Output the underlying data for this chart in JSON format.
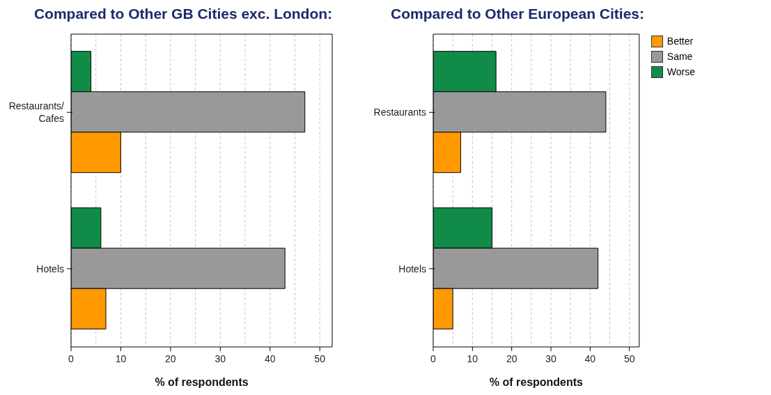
{
  "chart_data": [
    {
      "type": "bar",
      "orientation": "horizontal",
      "title": "Compared to Other GB Cities exc. London:",
      "xlabel": "% of respondents",
      "categories": [
        "Restaurants/\nCafes",
        "Hotels"
      ],
      "series": [
        {
          "color": "#ff9900",
          "values": [
            10,
            7
          ]
        },
        {
          "color": "#999999",
          "values": [
            47,
            43
          ]
        },
        {
          "color": "#108c48",
          "values": [
            4,
            6
          ]
        }
      ],
      "xlim": [
        0,
        52.5
      ],
      "xticks": [
        0,
        {
          "value": 5,
          "label": null
        },
        10,
        {
          "value": 15,
          "label": null
        },
        20,
        {
          "value": 25,
          "label": null
        },
        30,
        {
          "value": 35,
          "label": null
        },
        40,
        {
          "value": 45,
          "label": null
        },
        50
      ],
      "grid": "x",
      "legend": false
    },
    {
      "type": "bar",
      "orientation": "horizontal",
      "title": "Compared to Other European Cities:",
      "xlabel": "% of respondents",
      "categories": [
        "Restaurants",
        "Hotels"
      ],
      "series": [
        {
          "name": "Better",
          "color": "#ff9900",
          "values": [
            7,
            5
          ]
        },
        {
          "name": "Same",
          "color": "#999999",
          "values": [
            44,
            42
          ]
        },
        {
          "name": "Worse",
          "color": "#108c48",
          "values": [
            16,
            15
          ]
        }
      ],
      "xlim": [
        0,
        52.5
      ],
      "xticks": [
        0,
        {
          "value": 5,
          "label": null
        },
        10,
        {
          "value": 15,
          "label": null
        },
        20,
        {
          "value": 25,
          "label": null
        },
        30,
        {
          "value": 35,
          "label": null
        },
        40,
        {
          "value": 45,
          "label": null
        },
        50
      ],
      "grid": "x",
      "legend": "top right"
    }
  ]
}
